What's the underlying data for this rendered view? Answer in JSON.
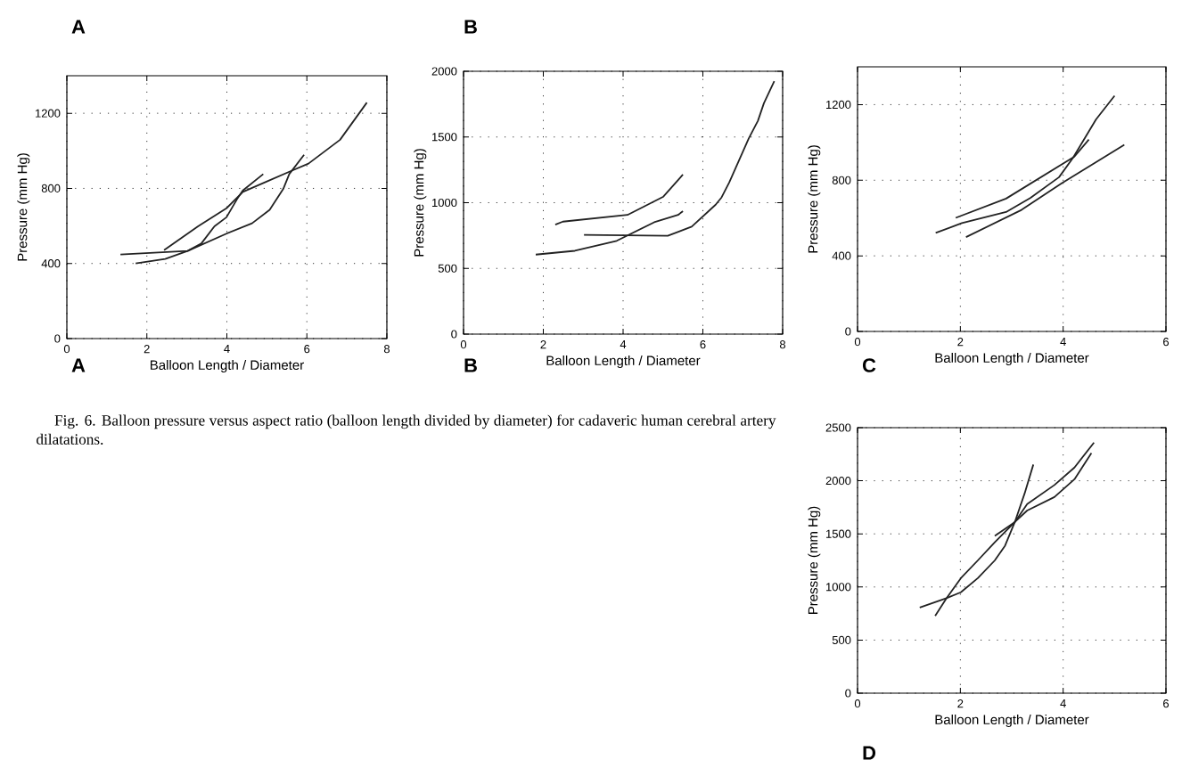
{
  "chart_data": [
    {
      "type": "line",
      "xlabel": "Balloon Length / Diameter",
      "ylabel": "Pressure (mm Hg)",
      "xlim": [
        0,
        8
      ],
      "ylim": [
        0,
        1400
      ],
      "xticks": [
        0,
        2,
        4,
        6,
        8
      ],
      "yticks": [
        0,
        400,
        800,
        1200
      ],
      "grid": true,
      "line_style": "solid",
      "annotations": [
        "A",
        "A",
        "Fig. 6. Balloon pressure versus aspect ratio (balloon length divided by diameter) for cadaveric human cerebral artery dilatations."
      ],
      "series": [
        {
          "color": "#222222",
          "x": [
            1.34,
            3.02,
            3.36,
            3.69,
            3.99,
            4.25,
            4.4,
            4.91
          ],
          "values": [
            448,
            467,
            506,
            598,
            646,
            741,
            789,
            876
          ]
        },
        {
          "color": "#222222",
          "x": [
            2.43,
            3.28,
            3.99,
            4.4,
            4.99,
            5.6,
            6.04,
            6.83,
            7.5
          ],
          "values": [
            471,
            598,
            694,
            781,
            836,
            892,
            932,
            1059,
            1257
          ]
        },
        {
          "color": "#222222",
          "x": [
            1.72,
            2.46,
            3.02,
            3.99,
            4.63,
            5.07,
            5.41,
            5.56,
            5.93
          ],
          "values": [
            400,
            424,
            467,
            559,
            614,
            686,
            797,
            876,
            979
          ]
        }
      ]
    },
    {
      "type": "line",
      "xlabel": "Balloon Length / Diameter",
      "ylabel": "Pressure (mm Hg)",
      "xlim": [
        0,
        8
      ],
      "ylim": [
        0,
        2000
      ],
      "xticks": [
        0,
        2,
        4,
        6,
        8
      ],
      "yticks": [
        0,
        500,
        1000,
        1500,
        2000
      ],
      "grid": true,
      "line_style": "solid",
      "annotations": [
        "B",
        "B"
      ],
      "series": [
        {
          "color": "#222222",
          "x": [
            2.3,
            2.49,
            4.11,
            5.01,
            5.5
          ],
          "values": [
            833,
            856,
            907,
            1046,
            1214
          ]
        },
        {
          "color": "#222222",
          "x": [
            3.02,
            5.12,
            5.72,
            6.32,
            6.47,
            6.66,
            7.15,
            7.38,
            7.53,
            7.79
          ],
          "values": [
            755,
            748,
            818,
            985,
            1041,
            1153,
            1489,
            1623,
            1757,
            1925
          ]
        },
        {
          "color": "#222222",
          "x": [
            1.81,
            2.79,
            3.84,
            4.78,
            5.38,
            5.5
          ],
          "values": [
            605,
            634,
            710,
            851,
            907,
            936
          ]
        }
      ]
    },
    {
      "type": "line",
      "xlabel": "Balloon Length / Diameter",
      "ylabel": "Pressure (mm Hg)",
      "xlim": [
        0,
        6
      ],
      "ylim": [
        0,
        1400
      ],
      "xticks": [
        0,
        2,
        4,
        6
      ],
      "yticks": [
        0,
        400,
        800,
        1200
      ],
      "grid": true,
      "line_style": "solid",
      "annotations": [
        "C"
      ],
      "series": [
        {
          "color": "#222222",
          "x": [
            1.91,
            2.89,
            4.22,
            4.5
          ],
          "values": [
            601,
            703,
            925,
            1015
          ]
        },
        {
          "color": "#222222",
          "x": [
            1.52,
            2.03,
            2.89,
            3.36,
            3.92,
            4.19,
            4.64,
            5.0
          ],
          "values": [
            521,
            573,
            632,
            706,
            816,
            918,
            1122,
            1247
          ]
        },
        {
          "color": "#222222",
          "x": [
            2.11,
            3.19,
            3.97,
            5.19
          ],
          "values": [
            499,
            643,
            784,
            988
          ]
        }
      ]
    },
    {
      "type": "line",
      "xlabel": "Balloon Length / Diameter",
      "ylabel": "Pressure (mm Hg)",
      "xlim": [
        0,
        6
      ],
      "ylim": [
        0,
        2500
      ],
      "xticks": [
        0,
        2,
        4,
        6
      ],
      "yticks": [
        0,
        500,
        1000,
        1500,
        2000,
        2500
      ],
      "grid": true,
      "line_style": "solid",
      "annotations": [
        "D"
      ],
      "series": [
        {
          "color": "#222222",
          "x": [
            1.51,
            1.73,
            2.01,
            2.34,
            2.67,
            3.06,
            3.3,
            3.83,
            4.22,
            4.6
          ],
          "values": [
            728,
            894,
            1083,
            1250,
            1420,
            1611,
            1780,
            1960,
            2125,
            2360
          ]
        },
        {
          "color": "#222222",
          "x": [
            1.21,
            1.73,
            2.01,
            2.34,
            2.67,
            2.87,
            3.06,
            3.25,
            3.42
          ],
          "values": [
            806,
            894,
            950,
            1083,
            1250,
            1389,
            1611,
            1880,
            2153
          ]
        },
        {
          "color": "#222222",
          "x": [
            2.67,
            3.06,
            3.3,
            3.83,
            4.22,
            4.55
          ],
          "values": [
            1480,
            1611,
            1720,
            1847,
            2014,
            2260
          ]
        }
      ]
    }
  ]
}
